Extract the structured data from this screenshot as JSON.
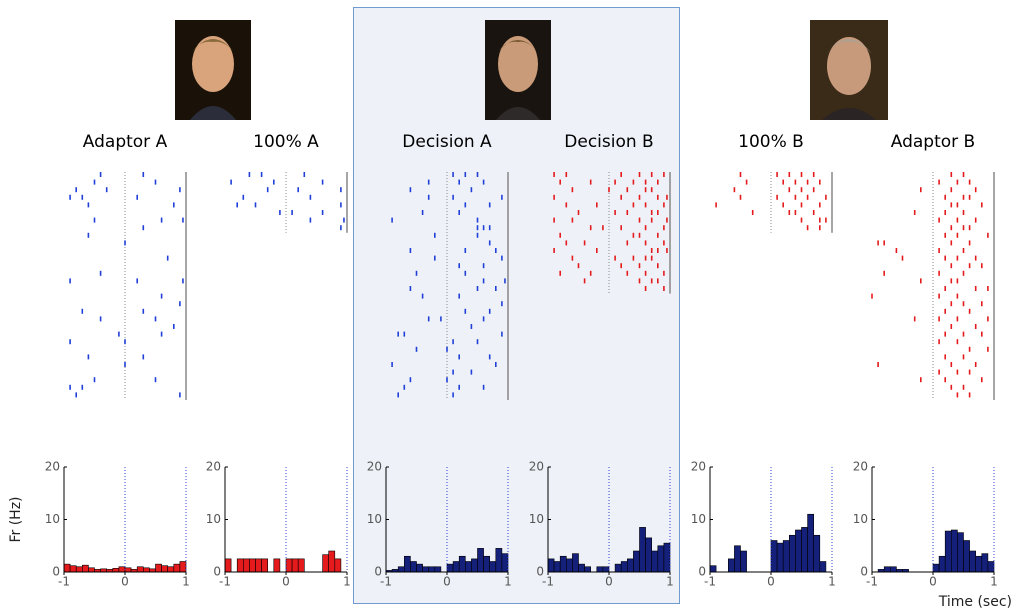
{
  "chart_data": [
    {
      "type": "histogram",
      "title": "Adaptor A",
      "ylabel": "Fr (Hz)",
      "color": "#e41a1c",
      "bins": [
        -1,
        -0.9,
        -0.8,
        -0.7,
        -0.6,
        -0.5,
        -0.4,
        -0.3,
        -0.2,
        -0.1,
        0,
        0.1,
        0.2,
        0.3,
        0.4,
        0.5,
        0.6,
        0.7,
        0.8,
        0.9,
        1
      ],
      "values": [
        1.5,
        1.2,
        1,
        1.3,
        0.8,
        0.5,
        0.6,
        0.5,
        0.7,
        1,
        0.8,
        0.5,
        1,
        0.8,
        0.6,
        1.5,
        1.2,
        1,
        1.5,
        2
      ],
      "xlim": [
        -1,
        1
      ],
      "xticks": [
        -1,
        0,
        1
      ],
      "ylim": [
        0,
        20
      ],
      "yticks": [
        0,
        10,
        20
      ],
      "raster": {
        "color": "#1f3fd8",
        "trials": [
          [
            -0.4,
            0.3
          ],
          [
            -0.5,
            0.5
          ],
          [
            -0.8,
            -0.3,
            0.9
          ],
          [
            -0.9,
            -0.7,
            0.2
          ],
          [
            -0.6,
            0.8
          ],
          [],
          [
            -0.5,
            0.6,
            0.95
          ],
          [
            0.3
          ],
          [
            -0.6
          ],
          [
            0
          ],
          [],
          [
            0.7
          ],
          [],
          [
            -0.4
          ],
          [
            -0.9,
            0.2,
            0.95
          ],
          [],
          [
            0.6
          ],
          [
            0.9
          ],
          [
            -0.7,
            0.3
          ],
          [
            -0.4,
            0.5
          ],
          [
            0.8
          ],
          [
            -0.1,
            0.6
          ],
          [
            -0.9,
            0
          ],
          [],
          [
            -0.6,
            0.3
          ],
          [
            0
          ],
          [],
          [
            -0.5,
            0.5
          ],
          [
            -0.9,
            -0.7
          ],
          [
            -0.8,
            0.9
          ]
        ]
      }
    },
    {
      "type": "histogram",
      "title": "100% A",
      "color": "#e41a1c",
      "bins": [
        -1,
        -0.9,
        -0.8,
        -0.7,
        -0.6,
        -0.5,
        -0.4,
        -0.3,
        -0.2,
        -0.1,
        0,
        0.1,
        0.2,
        0.3,
        0.4,
        0.5,
        0.6,
        0.7,
        0.8,
        0.9,
        1
      ],
      "values": [
        2.5,
        0,
        2.5,
        2.5,
        2.5,
        2.5,
        2.5,
        0,
        2.5,
        0,
        2.5,
        2.5,
        2.5,
        0,
        0,
        0,
        3.3,
        4,
        2.5,
        0
      ],
      "xlim": [
        -1,
        1
      ],
      "xticks": [
        -1,
        0,
        1
      ],
      "ylim": [
        0,
        20
      ],
      "yticks": [
        0,
        10,
        20
      ],
      "raster": {
        "color": "#1f3fd8",
        "trials": [
          [
            -0.6,
            -0.4,
            0.3
          ],
          [
            -0.9,
            -0.2,
            0.6
          ],
          [
            -0.3,
            0.2,
            0.9
          ],
          [
            -0.7,
            0.4
          ],
          [
            -0.8,
            -0.5,
            0.9
          ],
          [
            -0.1,
            0.1,
            0.6
          ],
          [
            0.4,
            0.95
          ],
          [
            0.9
          ]
        ]
      }
    },
    {
      "type": "histogram",
      "title": "Decision A",
      "color": "#14207a",
      "bins": [
        -1,
        -0.9,
        -0.8,
        -0.7,
        -0.6,
        -0.5,
        -0.4,
        -0.3,
        -0.2,
        -0.1,
        0,
        0.1,
        0.2,
        0.3,
        0.4,
        0.5,
        0.6,
        0.7,
        0.8,
        0.9,
        1
      ],
      "values": [
        0.3,
        0.5,
        1,
        3,
        2,
        1.5,
        1,
        1,
        1,
        0,
        1.5,
        2,
        3,
        2,
        2.5,
        4.5,
        3,
        2,
        4.5,
        3.5
      ],
      "xlim": [
        -1,
        1
      ],
      "xticks": [
        -1,
        0,
        1
      ],
      "ylim": [
        0,
        20
      ],
      "yticks": [
        0,
        10,
        20
      ],
      "raster": {
        "color": "#1f3fd8",
        "trials": [
          [
            0.1,
            0.3,
            0.5
          ],
          [
            -0.3,
            0.2,
            0.6
          ],
          [
            -0.6,
            0.4
          ],
          [
            -0.3,
            0.1,
            0.9
          ],
          [
            0.3,
            0.7
          ],
          [
            -0.4,
            0.2
          ],
          [
            -0.9,
            0.5
          ],
          [
            0.5,
            0.6,
            0.7
          ],
          [
            -0.2,
            0.5
          ],
          [
            0.7
          ],
          [
            -0.6,
            0.3,
            0.8
          ],
          [
            -0.2,
            0.9
          ],
          [
            0.2,
            0.6
          ],
          [
            -0.5,
            0.3
          ],
          [
            0.6,
            0.95
          ],
          [
            -0.6,
            0.5,
            0.8
          ],
          [
            -0.4,
            0.2
          ],
          [
            0.9
          ],
          [
            0.3,
            0.7
          ],
          [
            -0.3,
            -0.1,
            0.6
          ],
          [
            0.4
          ],
          [
            -0.8,
            -0.7,
            0.9
          ],
          [
            0.1,
            0.5
          ],
          [
            -0.5,
            0
          ],
          [
            0.2,
            0.7
          ],
          [
            -0.9,
            0.8
          ],
          [
            0.1,
            0.4
          ],
          [
            -0.6,
            0
          ],
          [
            -0.7,
            0.2,
            0.6
          ],
          [
            -0.8,
            0.1
          ]
        ]
      }
    },
    {
      "type": "histogram",
      "title": "Decision B",
      "color": "#14207a",
      "bins": [
        -1,
        -0.9,
        -0.8,
        -0.7,
        -0.6,
        -0.5,
        -0.4,
        -0.3,
        -0.2,
        -0.1,
        0,
        0.1,
        0.2,
        0.3,
        0.4,
        0.5,
        0.6,
        0.7,
        0.8,
        0.9,
        1
      ],
      "values": [
        2.5,
        2,
        3,
        2.5,
        3.5,
        1.5,
        1,
        0,
        1,
        1,
        0,
        1.5,
        2,
        2.5,
        4,
        8.5,
        6.5,
        4,
        5,
        5.5
      ],
      "xlim": [
        -1,
        1
      ],
      "xticks": [
        -1,
        0,
        1
      ],
      "ylim": [
        0,
        20
      ],
      "yticks": [
        0,
        10,
        20
      ],
      "raster": {
        "color": "#e41a1c",
        "trials": [
          [
            -0.9,
            -0.7,
            0.2,
            0.5,
            0.7,
            0.9
          ],
          [
            -0.8,
            -0.3,
            0.1,
            0.4,
            0.6,
            0.8
          ],
          [
            -0.6,
            0,
            0.3,
            0.6,
            0.7
          ],
          [
            -0.9,
            0.2,
            0.5,
            0.8,
            0.95
          ],
          [
            -0.7,
            -0.2,
            0.4,
            0.6,
            0.9
          ],
          [
            -0.5,
            0.1,
            0.3,
            0.7,
            0.8
          ],
          [
            -0.9,
            -0.6,
            0.5,
            0.7,
            0.95
          ],
          [
            -0.3,
            -0.1,
            0.2,
            0.6,
            0.9
          ],
          [
            -0.8,
            0.4,
            0.5,
            0.8
          ],
          [
            -0.7,
            -0.4,
            0.3,
            0.6,
            0.9
          ],
          [
            -0.9,
            -0.2,
            0.7,
            0.8,
            0.95
          ],
          [
            -0.6,
            0.1,
            0.4,
            0.6,
            0.7
          ],
          [
            -0.5,
            0.2,
            0.5,
            0.8
          ],
          [
            -0.8,
            -0.3,
            0.3,
            0.6,
            0.9
          ],
          [
            -0.4,
            0.5,
            0.7,
            0.8
          ],
          [
            0.6,
            0.9
          ]
        ]
      }
    },
    {
      "type": "histogram",
      "title": "100% B",
      "color": "#14207a",
      "bins": [
        -1,
        -0.9,
        -0.8,
        -0.7,
        -0.6,
        -0.5,
        -0.4,
        -0.3,
        -0.2,
        -0.1,
        0,
        0.1,
        0.2,
        0.3,
        0.4,
        0.5,
        0.6,
        0.7,
        0.8,
        0.9,
        1
      ],
      "values": [
        1.2,
        0,
        0,
        2.5,
        5,
        4,
        0,
        0,
        0,
        0,
        6,
        5.5,
        6,
        7,
        8,
        8.5,
        11,
        7,
        2,
        0
      ],
      "xlim": [
        -1,
        1
      ],
      "xticks": [
        -1,
        0,
        1
      ],
      "ylim": [
        0,
        20
      ],
      "yticks": [
        0,
        10,
        20
      ],
      "raster": {
        "color": "#e41a1c",
        "trials": [
          [
            -0.5,
            0.1,
            0.3,
            0.5,
            0.7
          ],
          [
            -0.4,
            0.2,
            0.4,
            0.6,
            0.8
          ],
          [
            -0.6,
            0.3,
            0.5,
            0.7
          ],
          [
            -0.5,
            0.1,
            0.4,
            0.6,
            0.9
          ],
          [
            -0.9,
            0.2,
            0.5,
            0.8
          ],
          [
            -0.3,
            0.3,
            0.4,
            0.7
          ],
          [
            0.5,
            0.8,
            0.9
          ],
          [
            0.6,
            0.8
          ]
        ]
      }
    },
    {
      "type": "histogram",
      "title": "Adaptor B",
      "xlabel": "Time (sec)",
      "color": "#14207a",
      "bins": [
        -1,
        -0.9,
        -0.8,
        -0.7,
        -0.6,
        -0.5,
        -0.4,
        -0.3,
        -0.2,
        -0.1,
        0,
        0.1,
        0.2,
        0.3,
        0.4,
        0.5,
        0.6,
        0.7,
        0.8,
        0.9,
        1
      ],
      "values": [
        0,
        0.5,
        1,
        1,
        0.5,
        0.5,
        0,
        0,
        0,
        0,
        1.5,
        3,
        7.8,
        8,
        7.5,
        6,
        4,
        3,
        3.5,
        2
      ],
      "xlim": [
        -1,
        1
      ],
      "xticks": [
        -1,
        0,
        1
      ],
      "ylim": [
        0,
        20
      ],
      "yticks": [
        0,
        10,
        20
      ],
      "raster": {
        "color": "#e41a1c",
        "trials": [
          [
            0.3,
            0.5
          ],
          [
            0.1,
            0.4,
            0.6
          ],
          [
            -0.2,
            0.3,
            0.7
          ],
          [
            0.2,
            0.5,
            0.6
          ],
          [
            0.3,
            0.4,
            0.8
          ],
          [
            -0.3,
            0.2,
            0.5
          ],
          [
            0.1,
            0.4,
            0.7
          ],
          [
            0.3,
            0.5,
            0.6
          ],
          [
            0.2,
            0.4,
            0.9
          ],
          [
            -0.9,
            -0.8,
            0.3,
            0.6
          ],
          [
            -0.6,
            0.1,
            0.5
          ],
          [
            -0.5,
            0.2,
            0.4,
            0.7
          ],
          [
            0.3,
            0.6,
            0.8
          ],
          [
            -0.8,
            0.1,
            0.5
          ],
          [
            -0.2,
            0.3,
            0.4
          ],
          [
            0.2,
            0.7,
            0.9
          ],
          [
            -1,
            0.1,
            0.4
          ],
          [
            0.3,
            0.5,
            0.8
          ],
          [
            0.2,
            0.6
          ],
          [
            -0.3,
            0.1,
            0.4,
            0.9
          ],
          [
            0.3,
            0.7
          ],
          [
            0.2,
            0.5,
            0.8
          ],
          [
            0.1,
            0.4
          ],
          [
            0.6,
            0.9
          ],
          [
            0.2,
            0.5
          ],
          [
            -0.9,
            0.3,
            0.7
          ],
          [
            0.1,
            0.4,
            0.6
          ],
          [
            -0.2,
            0.2,
            0.8
          ],
          [
            0.3,
            0.5
          ],
          [
            0.4,
            0.6
          ]
        ]
      }
    }
  ]
}
